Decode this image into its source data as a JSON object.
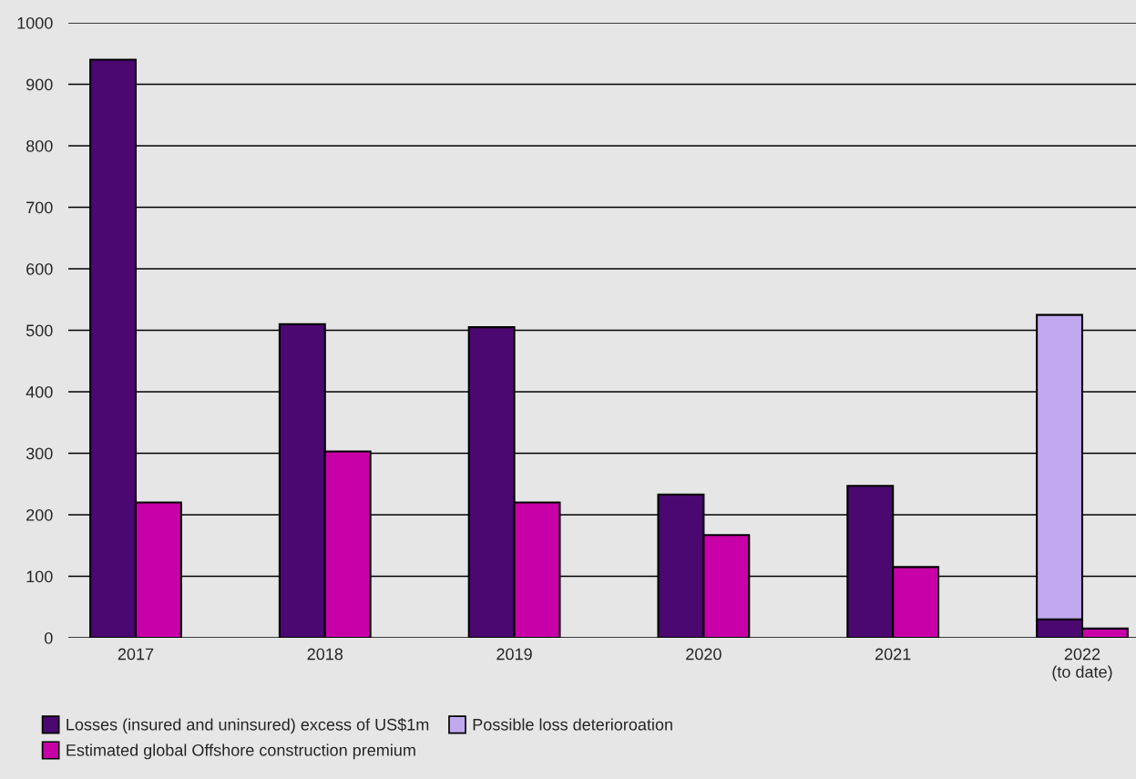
{
  "chart_data": {
    "type": "bar",
    "categories": [
      "2017",
      "2018",
      "2019",
      "2020",
      "2021",
      "2022\n(to date)"
    ],
    "series": [
      {
        "name": "Losses (insured and uninsured) excess of US$1m",
        "color": "#4b0870",
        "values": [
          940,
          510,
          505,
          233,
          247,
          30
        ]
      },
      {
        "name": "Estimated global Offshore construction premium",
        "color": "#c800a8",
        "values": [
          220,
          303,
          220,
          167,
          115,
          15
        ]
      },
      {
        "name": "Possible loss deterioroation",
        "color": "#c2a8ef",
        "values": [
          null,
          null,
          null,
          null,
          null,
          495
        ],
        "base": [
          null,
          null,
          null,
          null,
          null,
          30
        ]
      }
    ],
    "ylim": [
      0,
      1000
    ],
    "yticks": [
      0,
      100,
      200,
      300,
      400,
      500,
      600,
      700,
      800,
      900,
      1000
    ],
    "grid": "y",
    "legend": "bottom"
  }
}
